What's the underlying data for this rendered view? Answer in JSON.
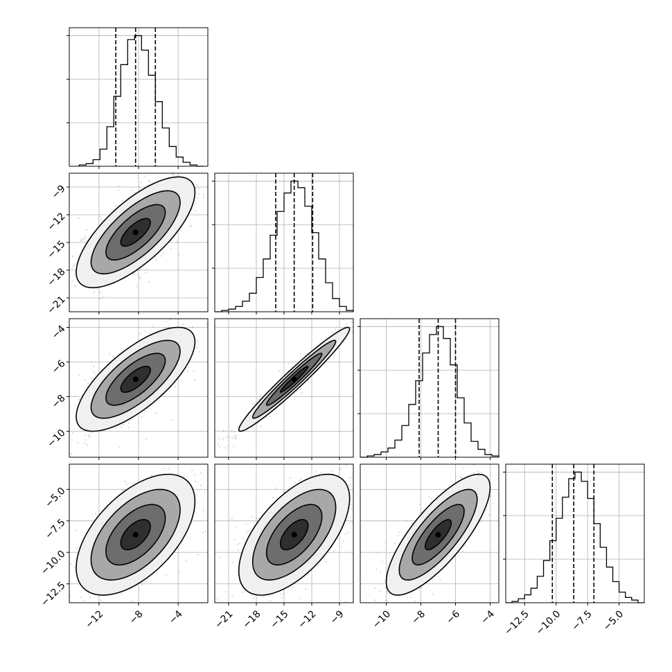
{
  "chart_data": {
    "type": "corner",
    "title": "",
    "n_params": 4,
    "grid_lines": true,
    "params": [
      {
        "index": 0,
        "axis_label": "",
        "range": [
          -15,
          -1
        ],
        "ticks": [
          -12,
          -8,
          -4
        ],
        "tick_labels": [
          "−12",
          "−8",
          "−4"
        ],
        "median": -8.3,
        "quantiles": [
          -10.3,
          -8.3,
          -6.3
        ],
        "histogram": {
          "edges": [
            -14.0,
            -13.3,
            -12.6,
            -11.9,
            -11.2,
            -10.5,
            -9.8,
            -9.1,
            -8.4,
            -7.7,
            -7.0,
            -6.3,
            -5.6,
            -4.9,
            -4.2,
            -3.5,
            -2.8,
            -2.1,
            -1.4
          ],
          "heights": [
            0.01,
            0.02,
            0.05,
            0.13,
            0.3,
            0.53,
            0.77,
            0.96,
            0.99,
            0.88,
            0.69,
            0.49,
            0.29,
            0.15,
            0.07,
            0.03,
            0.01,
            0.0
          ]
        }
      },
      {
        "index": 1,
        "axis_label": "",
        "range": [
          -22.5,
          -7.5
        ],
        "ticks": [
          -21,
          -18,
          -15,
          -12,
          -9
        ],
        "tick_labels": [
          "−21",
          "−18",
          "−15",
          "−12",
          "−9"
        ],
        "median": -13.9,
        "quantiles": [
          -15.9,
          -13.9,
          -11.9
        ],
        "histogram": {
          "edges": [
            -22.5,
            -21.75,
            -21.0,
            -20.25,
            -19.5,
            -18.75,
            -18.0,
            -17.25,
            -16.5,
            -15.75,
            -15.0,
            -14.25,
            -13.5,
            -12.75,
            -12.0,
            -11.25,
            -10.5,
            -9.75,
            -9.0,
            -8.25,
            -7.5
          ],
          "heights": [
            0.0,
            0.01,
            0.02,
            0.04,
            0.08,
            0.14,
            0.26,
            0.4,
            0.58,
            0.76,
            0.9,
            0.99,
            0.94,
            0.8,
            0.6,
            0.4,
            0.22,
            0.1,
            0.04,
            0.01
          ]
        }
      },
      {
        "index": 2,
        "axis_label": "",
        "range": [
          -11.5,
          -3.5
        ],
        "ticks": [
          -10,
          -8,
          -6,
          -4
        ],
        "tick_labels": [
          "−10",
          "−8",
          "−6",
          "−4"
        ],
        "median": -7.0,
        "quantiles": [
          -8.1,
          -7.0,
          -6.0
        ],
        "histogram": {
          "edges": [
            -11.5,
            -11.1,
            -10.7,
            -10.3,
            -9.9,
            -9.5,
            -9.1,
            -8.7,
            -8.3,
            -7.9,
            -7.5,
            -7.1,
            -6.7,
            -6.3,
            -5.9,
            -5.5,
            -5.1,
            -4.7,
            -4.3,
            -3.9,
            -3.5
          ],
          "heights": [
            0.0,
            0.01,
            0.02,
            0.04,
            0.07,
            0.13,
            0.24,
            0.4,
            0.58,
            0.79,
            0.93,
            0.99,
            0.9,
            0.7,
            0.45,
            0.26,
            0.12,
            0.06,
            0.02,
            0.01
          ]
        }
      },
      {
        "index": 3,
        "axis_label": "",
        "range": [
          -14,
          -3
        ],
        "ticks": [
          -12.5,
          -10.0,
          -7.5,
          -5.0
        ],
        "tick_labels": [
          "−12.5",
          "−10.0",
          "−7.5",
          "−5.0"
        ],
        "median": -8.6,
        "quantiles": [
          -10.3,
          -8.6,
          -7.0
        ],
        "histogram": {
          "edges": [
            -14.0,
            -13.5,
            -13.0,
            -12.5,
            -12.0,
            -11.5,
            -11.0,
            -10.5,
            -10.0,
            -9.5,
            -9.0,
            -8.5,
            -8.0,
            -7.5,
            -7.0,
            -6.5,
            -6.0,
            -5.5,
            -5.0,
            -4.5,
            -4.0,
            -3.5,
            -3.0
          ],
          "heights": [
            0.0,
            0.01,
            0.03,
            0.06,
            0.11,
            0.2,
            0.32,
            0.47,
            0.64,
            0.8,
            0.94,
            0.99,
            0.92,
            0.79,
            0.6,
            0.42,
            0.27,
            0.16,
            0.08,
            0.04,
            0.02,
            0.0
          ]
        }
      }
    ],
    "pairs": [
      {
        "row": 1,
        "col": 0,
        "center": [
          -8.3,
          -13.9
        ],
        "sigma": [
          3.0,
          3.0
        ],
        "correlation": 0.72,
        "n_points": 650
      },
      {
        "row": 2,
        "col": 0,
        "center": [
          -8.3,
          -7.0
        ],
        "sigma": [
          3.0,
          1.5
        ],
        "correlation": 0.72,
        "n_points": 650
      },
      {
        "row": 2,
        "col": 1,
        "center": [
          -13.9,
          -7.0
        ],
        "sigma": [
          3.0,
          1.5
        ],
        "correlation": 0.97,
        "n_points": 650
      },
      {
        "row": 3,
        "col": 0,
        "center": [
          -8.3,
          -8.6
        ],
        "sigma": [
          3.0,
          2.4
        ],
        "correlation": 0.55,
        "n_points": 650
      },
      {
        "row": 3,
        "col": 1,
        "center": [
          -13.9,
          -8.6
        ],
        "sigma": [
          3.0,
          2.4
        ],
        "correlation": 0.6,
        "n_points": 650
      },
      {
        "row": 3,
        "col": 2,
        "center": [
          -7.0,
          -8.6
        ],
        "sigma": [
          1.5,
          2.4
        ],
        "correlation": 0.78,
        "n_points": 650
      }
    ],
    "contour_levels_sigma": [
      0.5,
      1.0,
      1.5,
      2.0
    ],
    "contour_fills": [
      "#2f2f2f",
      "#6d6d6d",
      "#a8a8a8",
      "#f0f0f0"
    ]
  },
  "style": {
    "line_color": "#000000",
    "grid_color": "#b0b0b0",
    "scatter_color": "#8c8c8c",
    "background": "#ffffff"
  }
}
